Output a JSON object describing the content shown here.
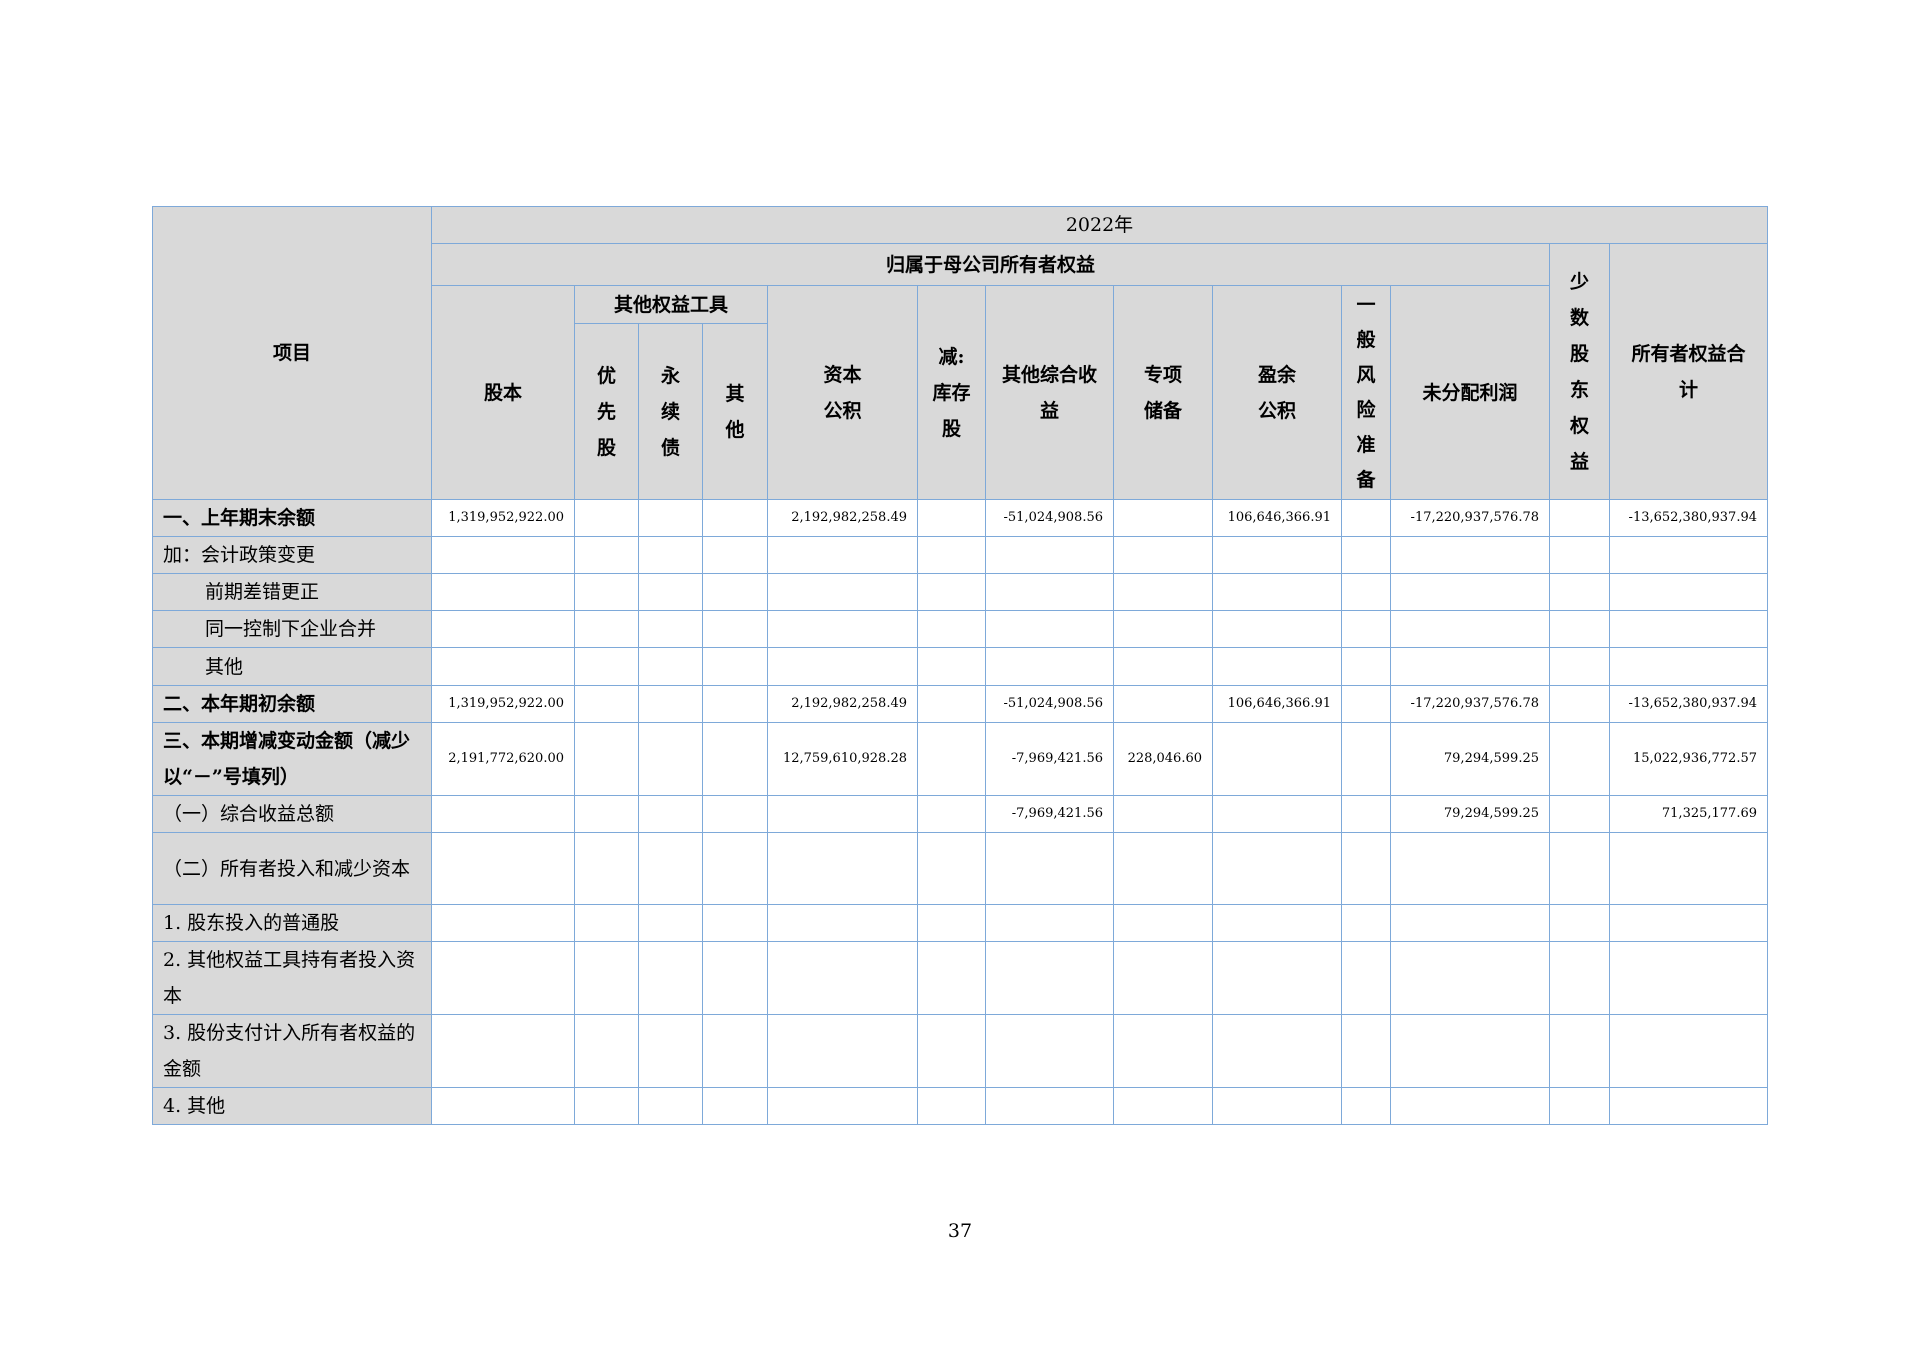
{
  "header": {
    "item": "项目",
    "year": "2022年",
    "parent_equity": "归属于母公司所有者权益",
    "share_capital": "股本",
    "other_equity_instruments": "其他权益工具",
    "preferred": "优\n先\n股",
    "perpetual": "永\n续\n债",
    "other": "其\n他",
    "capital_reserve": "资本\n公积",
    "treasury_stock": "减:\n库存\n股",
    "oci": "其他综合收\n益",
    "special_reserve": "专项\n储备",
    "surplus_reserve": "盈余\n公积",
    "general_risk": "一\n般\n风\n险\n准\n备",
    "retained": "未分配利润",
    "minority": "少\n数\n股\n东\n权\n益",
    "total": "所有者权益合\n计"
  },
  "rows": [
    {
      "label": "一、上年期末余额",
      "style": "bold",
      "values": [
        "1,319,952,922.00",
        "",
        "",
        "",
        "2,192,982,258.49",
        "",
        "-51,024,908.56",
        "",
        "106,646,366.91",
        "",
        "-17,220,937,576.78",
        "",
        "-13,652,380,937.94"
      ]
    },
    {
      "label": "加：会计政策变更",
      "style": "",
      "values": [
        "",
        "",
        "",
        "",
        "",
        "",
        "",
        "",
        "",
        "",
        "",
        "",
        ""
      ]
    },
    {
      "label": "前期差错更正",
      "style": "indent",
      "values": [
        "",
        "",
        "",
        "",
        "",
        "",
        "",
        "",
        "",
        "",
        "",
        "",
        ""
      ]
    },
    {
      "label": "同一控制下企业合并",
      "style": "indent",
      "values": [
        "",
        "",
        "",
        "",
        "",
        "",
        "",
        "",
        "",
        "",
        "",
        "",
        ""
      ]
    },
    {
      "label": "其他",
      "style": "indent",
      "values": [
        "",
        "",
        "",
        "",
        "",
        "",
        "",
        "",
        "",
        "",
        "",
        "",
        ""
      ]
    },
    {
      "label": "二、本年期初余额",
      "style": "bold",
      "values": [
        "1,319,952,922.00",
        "",
        "",
        "",
        "2,192,982,258.49",
        "",
        "-51,024,908.56",
        "",
        "106,646,366.91",
        "",
        "-17,220,937,576.78",
        "",
        "-13,652,380,937.94"
      ]
    },
    {
      "label": "三、本期增减变动金额（减少以“－”号填列）",
      "style": "bold",
      "values": [
        "2,191,772,620.00",
        "",
        "",
        "",
        "12,759,610,928.28",
        "",
        "-7,969,421.56",
        "228,046.60",
        "",
        "",
        "79,294,599.25",
        "",
        "15,022,936,772.57"
      ]
    },
    {
      "label": "（一）综合收益总额",
      "style": "",
      "values": [
        "",
        "",
        "",
        "",
        "",
        "",
        "-7,969,421.56",
        "",
        "",
        "",
        "79,294,599.25",
        "",
        "71,325,177.69"
      ]
    },
    {
      "label": "（二）所有者投入和减少资本",
      "style": "",
      "values": [
        "",
        "",
        "",
        "",
        "",
        "",
        "",
        "",
        "",
        "",
        "",
        "",
        ""
      ]
    },
    {
      "label": "1. 股东投入的普通股",
      "style": "",
      "values": [
        "",
        "",
        "",
        "",
        "",
        "",
        "",
        "",
        "",
        "",
        "",
        "",
        ""
      ]
    },
    {
      "label": "2. 其他权益工具持有者投入资本",
      "style": "",
      "values": [
        "",
        "",
        "",
        "",
        "",
        "",
        "",
        "",
        "",
        "",
        "",
        "",
        ""
      ]
    },
    {
      "label": "3. 股份支付计入所有者权益的金额",
      "style": "",
      "values": [
        "",
        "",
        "",
        "",
        "",
        "",
        "",
        "",
        "",
        "",
        "",
        "",
        ""
      ]
    },
    {
      "label": "4. 其他",
      "style": "",
      "values": [
        "",
        "",
        "",
        "",
        "",
        "",
        "",
        "",
        "",
        "",
        "",
        "",
        ""
      ]
    }
  ],
  "page_number": "37"
}
